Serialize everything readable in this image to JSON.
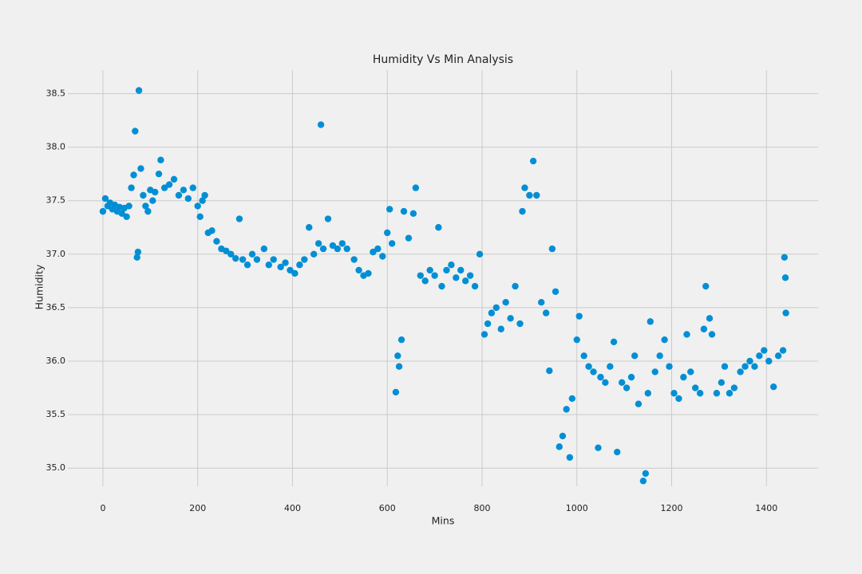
{
  "chart_data": {
    "type": "scatter",
    "title": "Humidity Vs Min Analysis",
    "xlabel": "Mins",
    "ylabel": "Humidity",
    "color": "#008fd5",
    "grid": true,
    "xlim": [
      -74,
      1509
    ],
    "ylim": [
      34.83,
      38.72
    ],
    "xticks": [
      0,
      200,
      400,
      600,
      800,
      1000,
      1200,
      1400
    ],
    "yticks": [
      {
        "value": 35,
        "label": "35.0"
      },
      35.5,
      {
        "value": 36,
        "label": "36.0"
      },
      36.5,
      {
        "value": 37,
        "label": "37.0"
      },
      37.5,
      {
        "value": 38,
        "label": "38.0"
      },
      38.5
    ],
    "x": [
      0,
      5,
      10,
      15,
      20,
      25,
      30,
      35,
      40,
      45,
      50,
      55,
      60,
      65,
      68,
      72,
      74,
      76,
      80,
      85,
      90,
      95,
      100,
      105,
      110,
      118,
      122,
      130,
      140,
      150,
      160,
      170,
      180,
      190,
      200,
      205,
      210,
      215,
      222,
      230,
      240,
      250,
      260,
      270,
      280,
      288,
      295,
      305,
      315,
      325,
      340,
      350,
      360,
      375,
      385,
      395,
      405,
      415,
      425,
      435,
      445,
      455,
      460,
      465,
      475,
      485,
      495,
      505,
      515,
      530,
      540,
      550,
      560,
      570,
      580,
      590,
      600,
      605,
      610,
      618,
      622,
      625,
      630,
      635,
      645,
      655,
      660,
      670,
      680,
      690,
      700,
      708,
      715,
      725,
      735,
      745,
      755,
      765,
      775,
      785,
      795,
      805,
      812,
      820,
      830,
      840,
      850,
      860,
      870,
      880,
      885,
      890,
      900,
      908,
      915,
      925,
      935,
      942,
      948,
      955,
      963,
      970,
      978,
      985,
      990,
      1000,
      1005,
      1015,
      1025,
      1035,
      1045,
      1050,
      1060,
      1070,
      1078,
      1085,
      1095,
      1105,
      1115,
      1122,
      1130,
      1140,
      1145,
      1150,
      1155,
      1165,
      1175,
      1185,
      1195,
      1205,
      1215,
      1225,
      1232,
      1240,
      1250,
      1260,
      1268,
      1272,
      1280,
      1285,
      1295,
      1305,
      1312,
      1322,
      1332,
      1345,
      1355,
      1365,
      1375,
      1385,
      1395,
      1405,
      1415,
      1425,
      1435,
      1438,
      1440,
      1441
    ],
    "y": [
      37.4,
      37.52,
      37.45,
      37.48,
      37.42,
      37.46,
      37.4,
      37.44,
      37.38,
      37.43,
      37.35,
      37.45,
      37.62,
      37.74,
      38.15,
      36.97,
      37.02,
      38.53,
      37.8,
      37.55,
      37.45,
      37.4,
      37.6,
      37.5,
      37.58,
      37.75,
      37.88,
      37.62,
      37.65,
      37.7,
      37.55,
      37.6,
      37.52,
      37.62,
      37.45,
      37.35,
      37.5,
      37.55,
      37.2,
      37.22,
      37.12,
      37.05,
      37.03,
      37.0,
      36.96,
      37.33,
      36.95,
      36.9,
      37.0,
      36.95,
      37.05,
      36.9,
      36.95,
      36.88,
      36.92,
      36.85,
      36.82,
      36.9,
      36.95,
      37.25,
      37.0,
      37.1,
      38.21,
      37.05,
      37.33,
      37.08,
      37.05,
      37.1,
      37.05,
      36.95,
      36.85,
      36.8,
      36.82,
      37.02,
      37.05,
      36.98,
      37.2,
      37.42,
      37.1,
      35.71,
      36.05,
      35.95,
      36.2,
      37.4,
      37.15,
      37.38,
      37.62,
      36.8,
      36.75,
      36.85,
      36.8,
      37.25,
      36.7,
      36.85,
      36.9,
      36.78,
      36.85,
      36.75,
      36.8,
      36.7,
      37.0,
      36.25,
      36.35,
      36.45,
      36.5,
      36.3,
      36.55,
      36.4,
      36.7,
      36.35,
      37.4,
      37.62,
      37.55,
      37.87,
      37.55,
      36.55,
      36.45,
      35.91,
      37.05,
      36.65,
      35.2,
      35.3,
      35.55,
      35.1,
      35.65,
      36.2,
      36.42,
      36.05,
      35.95,
      35.9,
      35.19,
      35.85,
      35.8,
      35.95,
      36.18,
      35.15,
      35.8,
      35.75,
      35.85,
      36.05,
      35.6,
      34.88,
      34.95,
      35.7,
      36.37,
      35.9,
      36.05,
      36.2,
      35.95,
      35.7,
      35.65,
      35.85,
      36.25,
      35.9,
      35.75,
      35.7,
      36.3,
      36.7,
      36.4,
      36.25,
      35.7,
      35.8,
      35.95,
      35.7,
      35.75,
      35.9,
      35.95,
      36.0,
      35.95,
      36.05,
      36.1,
      36.0,
      35.76,
      36.05,
      36.1,
      36.97,
      36.78,
      36.45
    ]
  }
}
